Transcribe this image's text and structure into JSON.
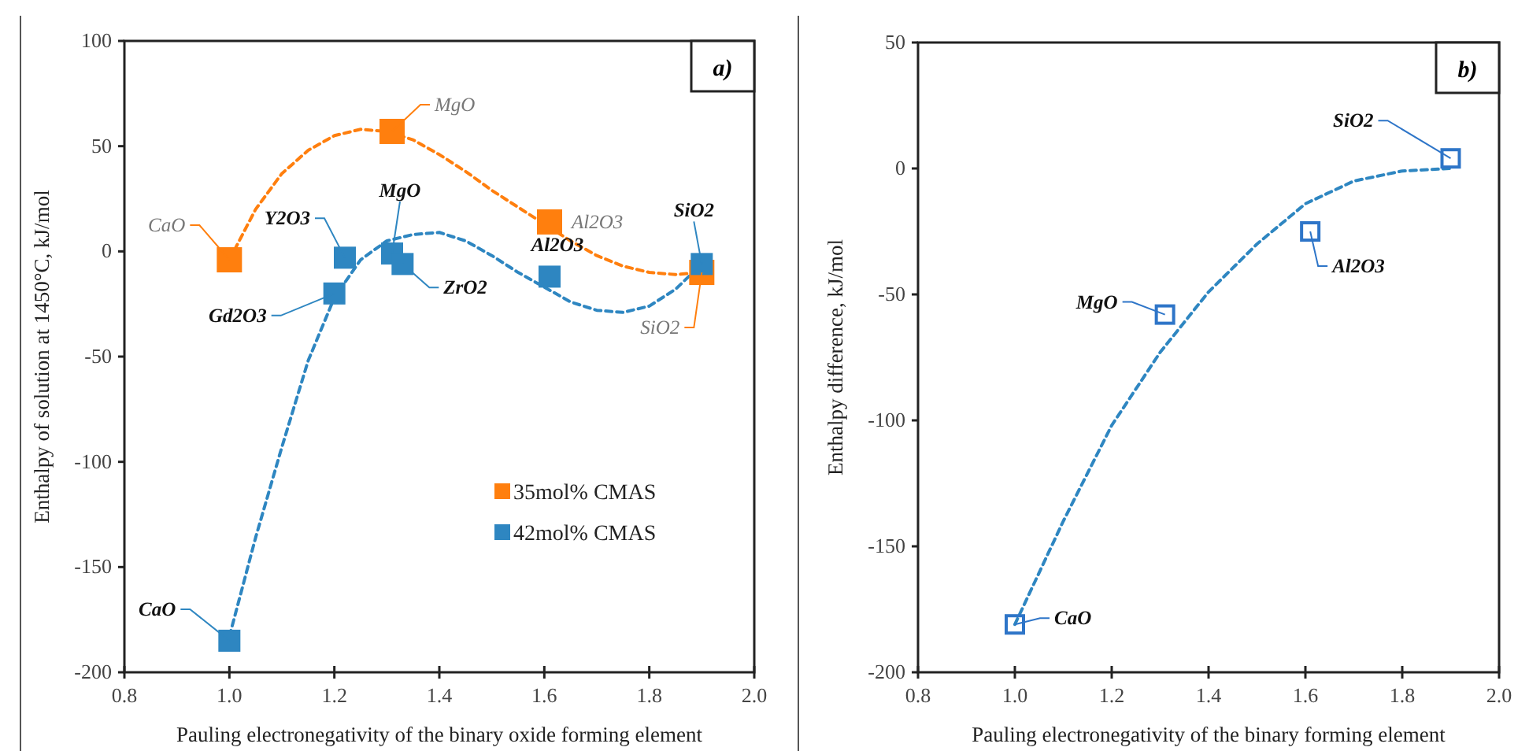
{
  "chart_data": [
    {
      "type": "scatter",
      "xlabel": "Pauling electronegativity of the binary oxide forming element",
      "ylabel": "Enthalpy of solution  at 1450°C, kJ/mol",
      "xlim": [
        0.8,
        2.0
      ],
      "xticks": [
        {
          "value": 0.8,
          "label": "0.8"
        },
        {
          "value": 1.0,
          "label": "1.0"
        },
        {
          "value": 1.2,
          "label": "1.2"
        },
        {
          "value": 1.4,
          "label": "1.4"
        },
        {
          "value": 1.6,
          "label": "1.6"
        },
        {
          "value": 1.8,
          "label": "1.8"
        },
        {
          "value": 2.0,
          "label": "2.0"
        }
      ],
      "ylim": [
        -200,
        100
      ],
      "yticks": [
        -200,
        -150,
        -100,
        -50,
        0,
        50,
        100
      ],
      "grid": false,
      "legend": "right",
      "marker": "square",
      "series": [
        {
          "name": "35mol% CMAS",
          "color": "#ff7f0e",
          "x": [
            1.0,
            1.31,
            1.61,
            1.9
          ],
          "values": [
            -4,
            57,
            14,
            -10
          ]
        },
        {
          "name": "42mol% CMAS",
          "color": "#2e86c1",
          "x": [
            1.0,
            1.2,
            1.22,
            1.31,
            1.33,
            1.61,
            1.9
          ],
          "values": [
            -185,
            -20,
            -3,
            -1,
            -6,
            -12,
            -6
          ]
        },
        {
          "type": "line",
          "color": "#ff7f0e",
          "line_style": "dashed",
          "marker": "none",
          "x": [
            1.0,
            1.05,
            1.1,
            1.15,
            1.2,
            1.25,
            1.3,
            1.35,
            1.4,
            1.45,
            1.5,
            1.55,
            1.6,
            1.65,
            1.7,
            1.75,
            1.8,
            1.85,
            1.9
          ],
          "values": [
            -4,
            20,
            37,
            48,
            55,
            58,
            57,
            53,
            46,
            38,
            29,
            21,
            13,
            5,
            -2,
            -7,
            -10,
            -11,
            -10
          ]
        },
        {
          "type": "line",
          "color": "#2e86c1",
          "line_style": "dashed",
          "marker": "none",
          "x": [
            1.0,
            1.05,
            1.1,
            1.15,
            1.2,
            1.25,
            1.3,
            1.35,
            1.4,
            1.45,
            1.5,
            1.55,
            1.6,
            1.65,
            1.7,
            1.75,
            1.8,
            1.85,
            1.9
          ],
          "values": [
            -183,
            -136,
            -93,
            -52,
            -22,
            -4,
            5,
            8,
            9,
            5,
            -2,
            -10,
            -17,
            -24,
            -28,
            -29,
            -26,
            -18,
            -6
          ]
        }
      ],
      "annotations": [
        "a)",
        {
          "text": "CaO",
          "x": 1.0,
          "y": -4
        },
        {
          "text": "MgO",
          "x": 1.31,
          "y": 57
        },
        {
          "text": "Al2O3",
          "x": 1.61,
          "y": 14
        },
        {
          "text": "SiO2",
          "x": 1.9,
          "y": -10
        },
        {
          "text": "CaO",
          "x": 1.0,
          "y": -185
        },
        {
          "text": "Gd2O3",
          "x": 1.2,
          "y": -20
        },
        {
          "text": "Y2O3",
          "x": 1.22,
          "y": -3
        },
        {
          "text": "MgO",
          "x": 1.31,
          "y": -1
        },
        {
          "text": "ZrO2",
          "x": 1.33,
          "y": -6
        },
        {
          "text": "Al2O3",
          "x": 1.61,
          "y": -12
        },
        {
          "text": "SiO2",
          "x": 1.9,
          "y": -6
        }
      ]
    },
    {
      "type": "scatter",
      "xlabel": "Pauling electronegativity of the binary forming element",
      "ylabel": "Enthalpy difference, kJ/mol",
      "xlim": [
        0.8,
        2.0
      ],
      "xticks": [
        {
          "value": 0.8,
          "label": "0.8"
        },
        {
          "value": 1.0,
          "label": "1.0"
        },
        {
          "value": 1.2,
          "label": "1.2"
        },
        {
          "value": 1.4,
          "label": "1.4"
        },
        {
          "value": 1.6,
          "label": "1.6"
        },
        {
          "value": 1.8,
          "label": "1.8"
        },
        {
          "value": 2.0,
          "label": "2.0"
        }
      ],
      "ylim": [
        -200,
        50
      ],
      "yticks": [
        -200,
        -150,
        -100,
        -50,
        0,
        50
      ],
      "grid": false,
      "legend": false,
      "marker": "square",
      "series": [
        {
          "color": "#2e75c8",
          "x": [
            1.0,
            1.31,
            1.61,
            1.9
          ],
          "values": [
            -181,
            -58,
            -25,
            4
          ]
        },
        {
          "type": "line",
          "color": "#2e86c1",
          "line_style": "dashed",
          "marker": "none",
          "x": [
            1.0,
            1.1,
            1.2,
            1.3,
            1.4,
            1.5,
            1.6,
            1.7,
            1.8,
            1.9
          ],
          "values": [
            -181,
            -140,
            -102,
            -73,
            -49,
            -30,
            -14,
            -5,
            -1,
            0
          ]
        }
      ],
      "annotations": [
        "b)",
        {
          "text": "CaO",
          "x": 1.0,
          "y": -181
        },
        {
          "text": "MgO",
          "x": 1.31,
          "y": -58
        },
        {
          "text": "Al2O3",
          "x": 1.61,
          "y": -25
        },
        {
          "text": "SiO2",
          "x": 1.9,
          "y": 4
        }
      ]
    }
  ]
}
